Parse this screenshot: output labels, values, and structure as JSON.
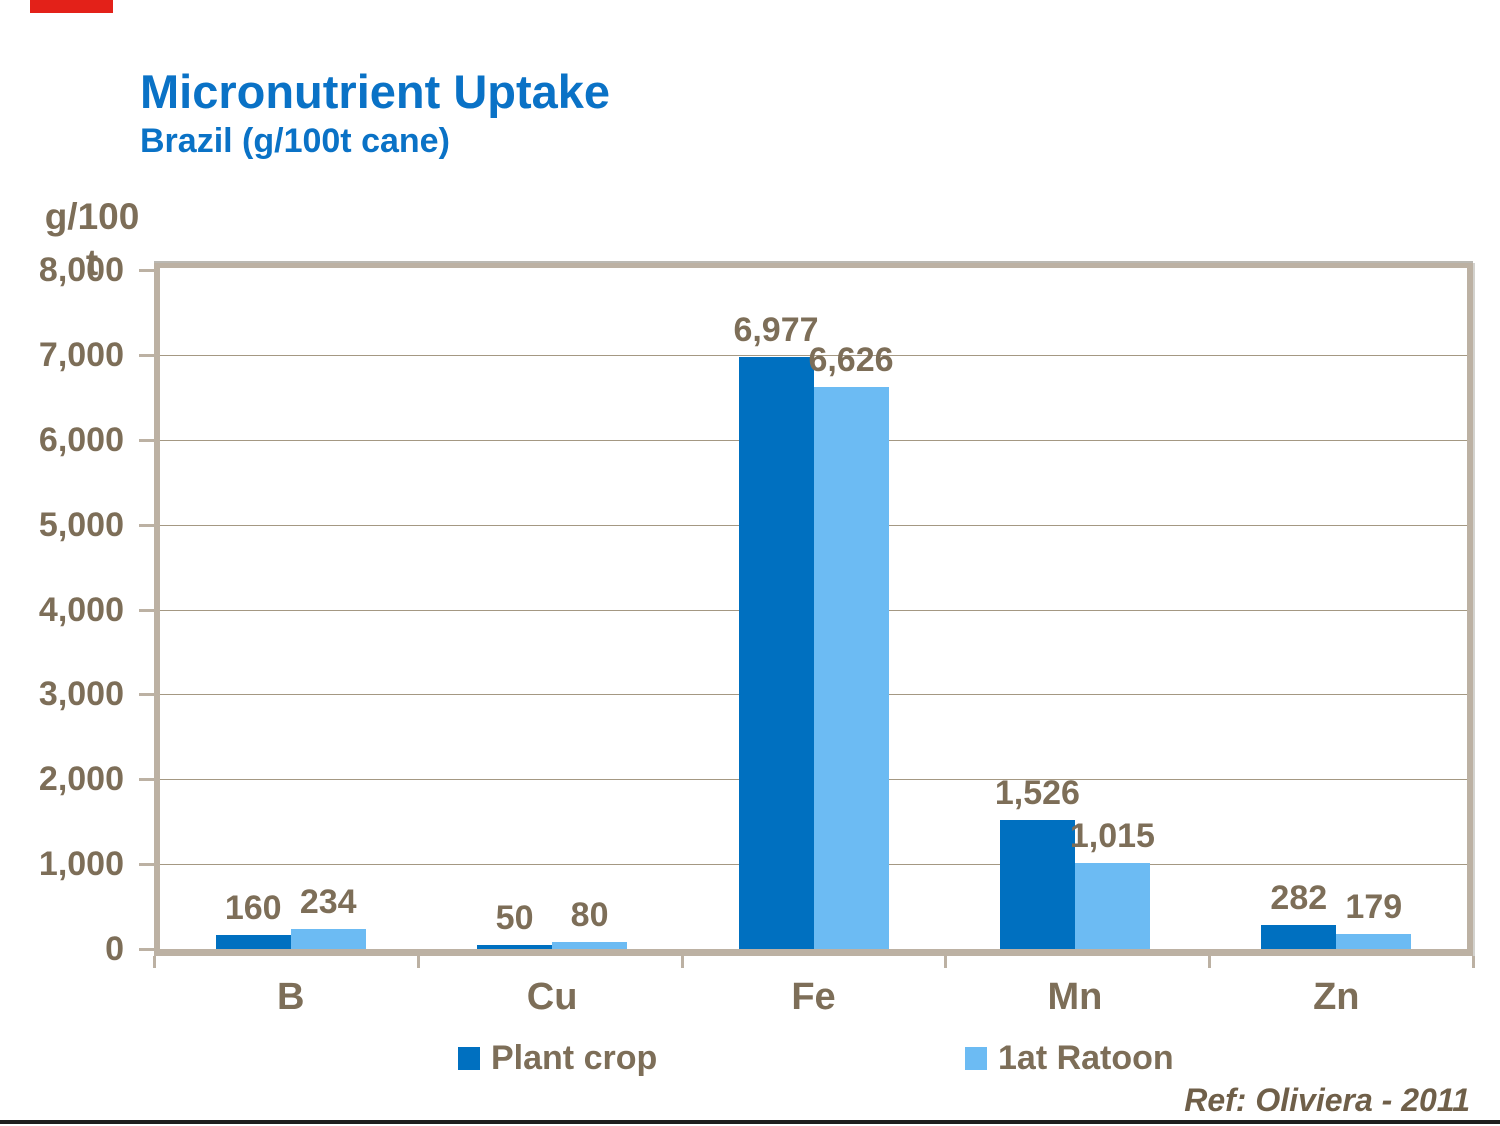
{
  "slide": {
    "title": "Micronutrient Uptake",
    "subtitle": "Brazil (g/100t cane)",
    "reference": "Ref: Oliviera - 2011"
  },
  "chart_data": {
    "type": "bar",
    "title": "Micronutrient Uptake",
    "subtitle": "Brazil (g/100t cane)",
    "categories": [
      "B",
      "Cu",
      "Fe",
      "Mn",
      "Zn"
    ],
    "series": [
      {
        "name": "Plant crop",
        "color": "#0070c0",
        "values": [
          160,
          50,
          6977,
          1526,
          282
        ],
        "labels": [
          "160",
          "50",
          "6,977",
          "1,526",
          "282"
        ]
      },
      {
        "name": "1at Ratoon",
        "color": "#6cbbf3",
        "values": [
          234,
          80,
          6626,
          1015,
          179
        ],
        "labels": [
          "234",
          "80",
          "6,626",
          "1,015",
          "179"
        ]
      }
    ],
    "xlabel": "",
    "ylabel": "g/100 t",
    "ylim": [
      0,
      8000
    ],
    "y_tick_interval": 1000,
    "y_tick_labels": [
      "0",
      "1,000",
      "2,000",
      "3,000",
      "4,000",
      "5,000",
      "6,000",
      "7,000",
      "8,000"
    ],
    "grid": true,
    "legend_position": "bottom",
    "colors": {
      "axis_frame": "#bcb1a3",
      "gridline": "#a49883",
      "axis_text": "#7d6e58",
      "title_text": "#0a72c6",
      "reference_text": "#6f5f49",
      "accent_bar": "#e32119",
      "bottom_rule": "#1f1f1f"
    }
  }
}
